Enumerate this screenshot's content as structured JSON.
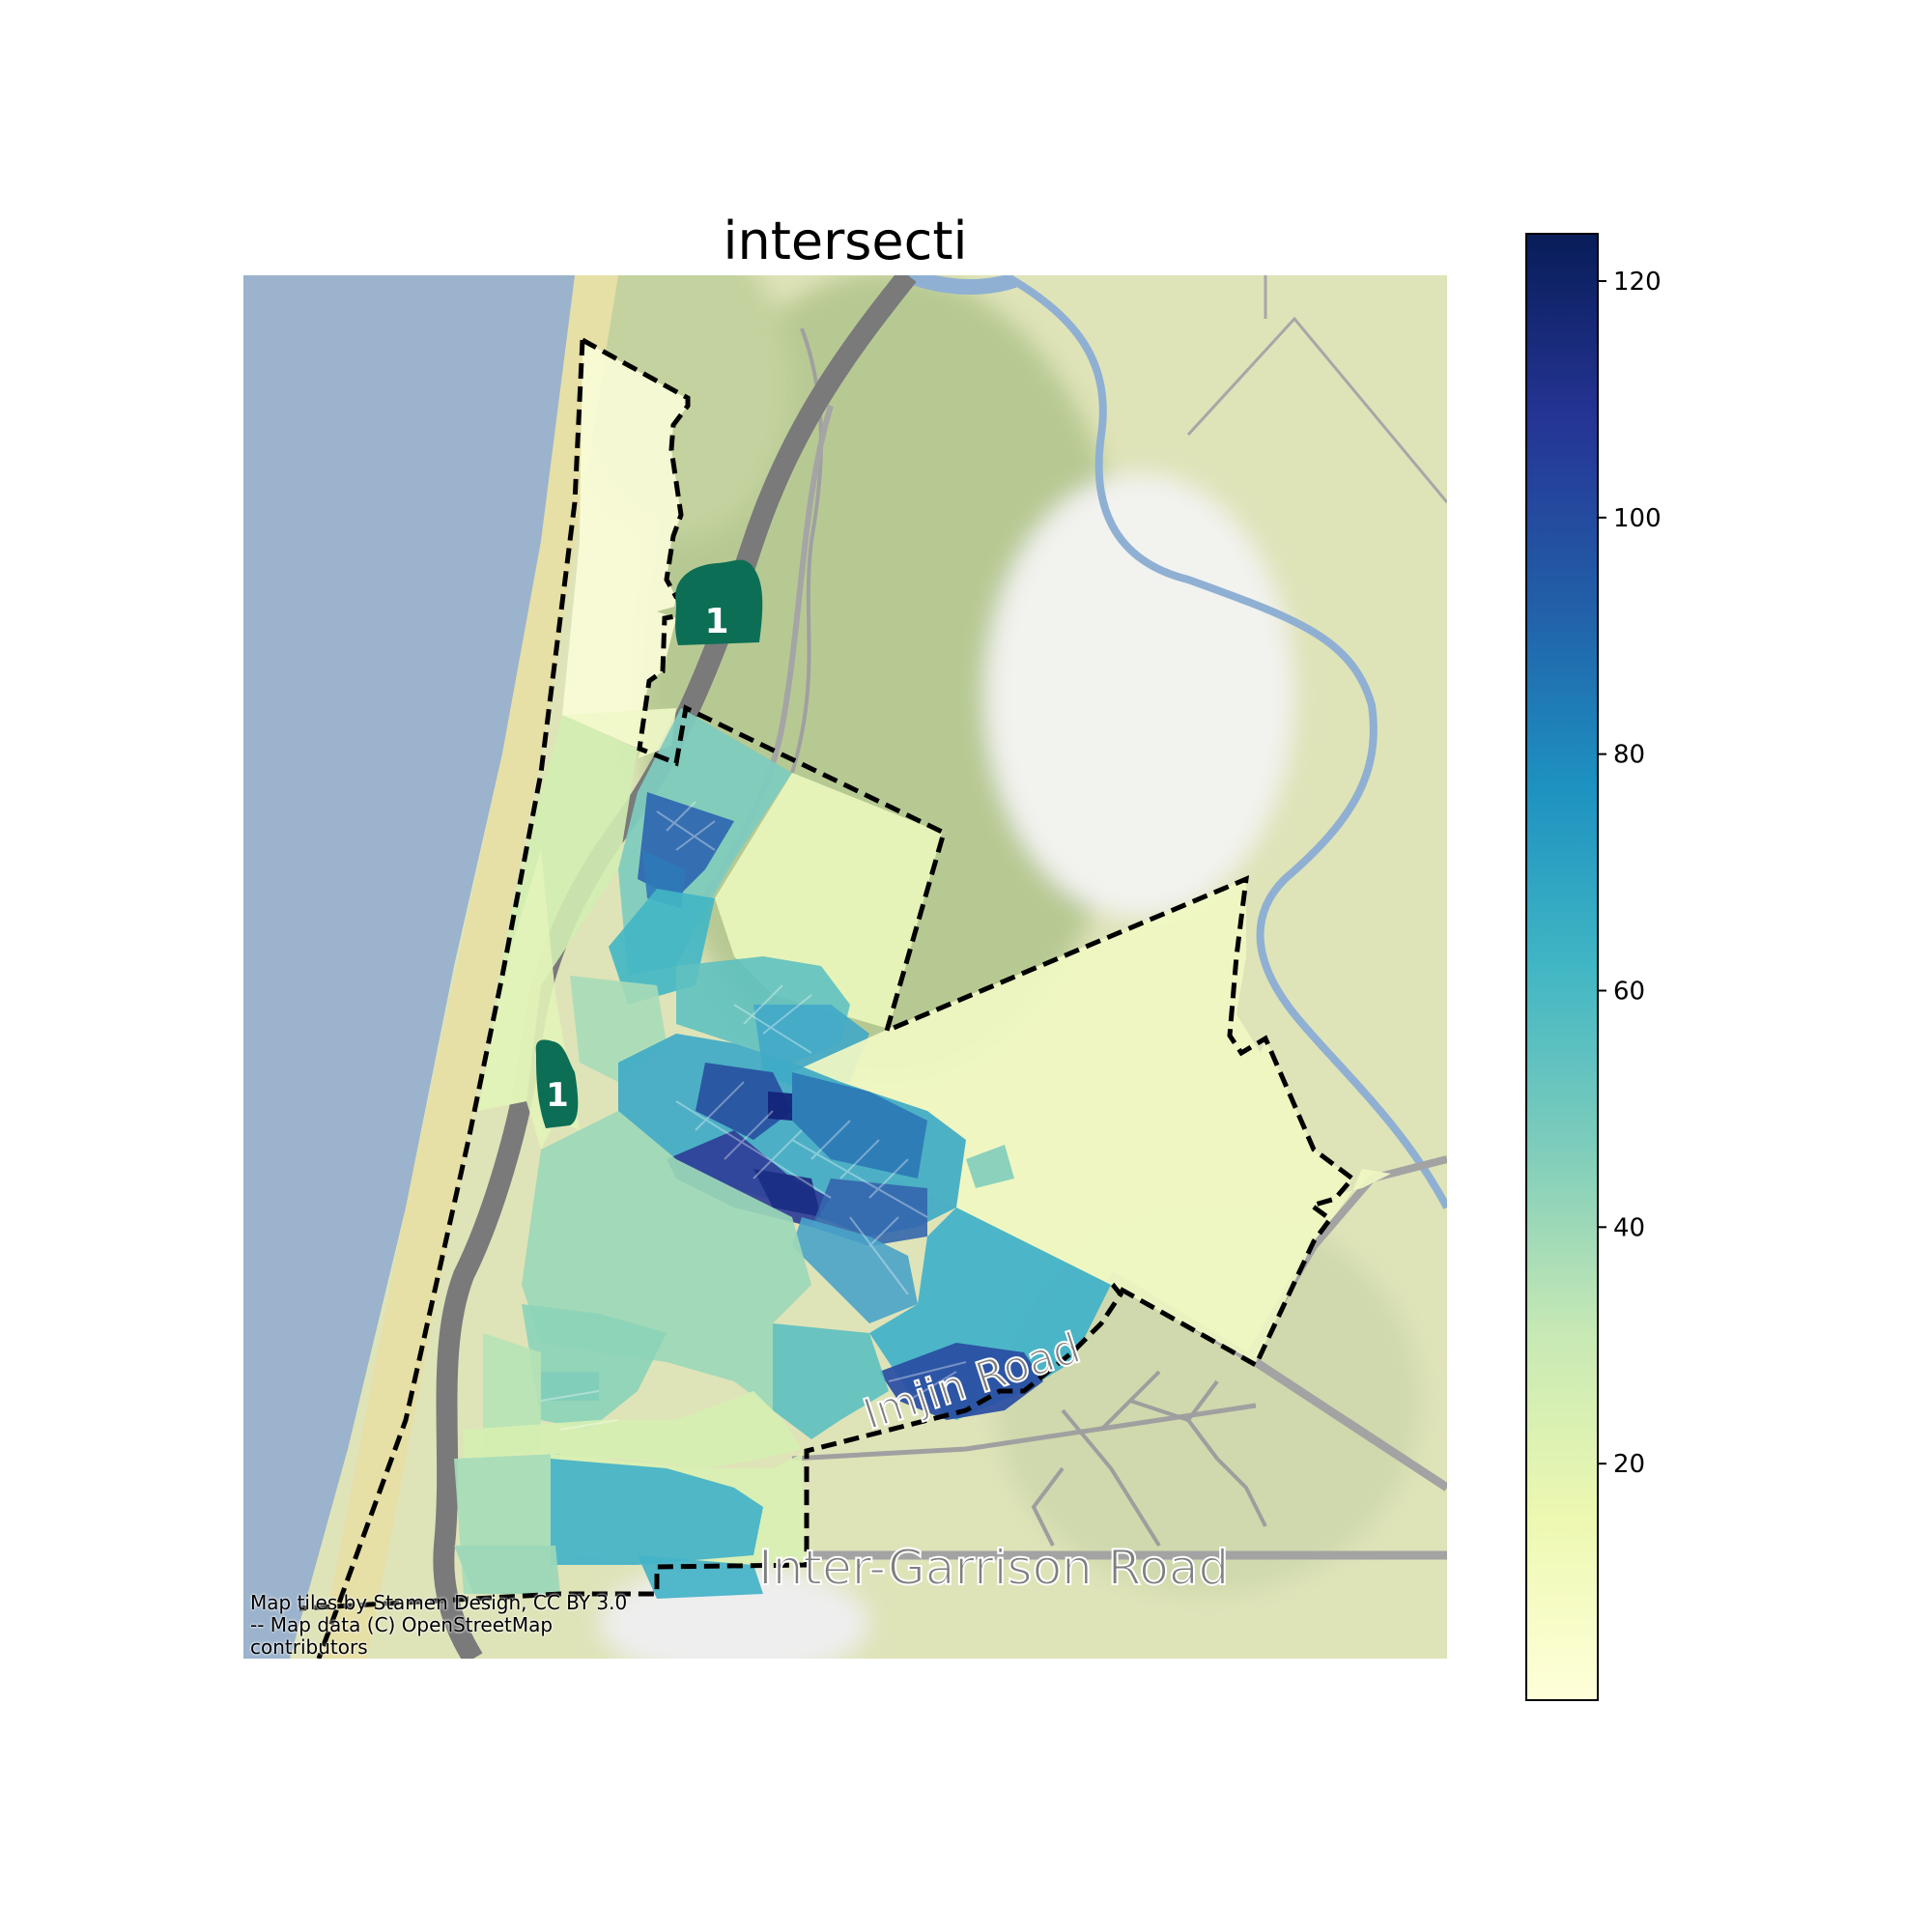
{
  "map": {
    "title": "intersecti",
    "attribution": "Map tiles by Stamen Design, CC BY 3.0\n-- Map data (C) OpenStreetMap\ncontributors",
    "road_labels": [
      "Inter-Garrison Road",
      "Imjin Road"
    ],
    "route_shields": [
      "1",
      "1"
    ],
    "colormap": "YlGnBu",
    "colors": {
      "ocean": "#9bb3cc",
      "land": "#dfe3b8",
      "vegetation": "#b9cc94",
      "river": "#8fb0d3",
      "highway": "#808080",
      "shield": "#0c6e55",
      "boundary": "#000000"
    }
  },
  "colorbar": {
    "min": 0,
    "max": 124,
    "ticks": [
      "20",
      "40",
      "60",
      "80",
      "100",
      "120"
    ],
    "tick_values": [
      20,
      40,
      60,
      80,
      100,
      120
    ]
  }
}
